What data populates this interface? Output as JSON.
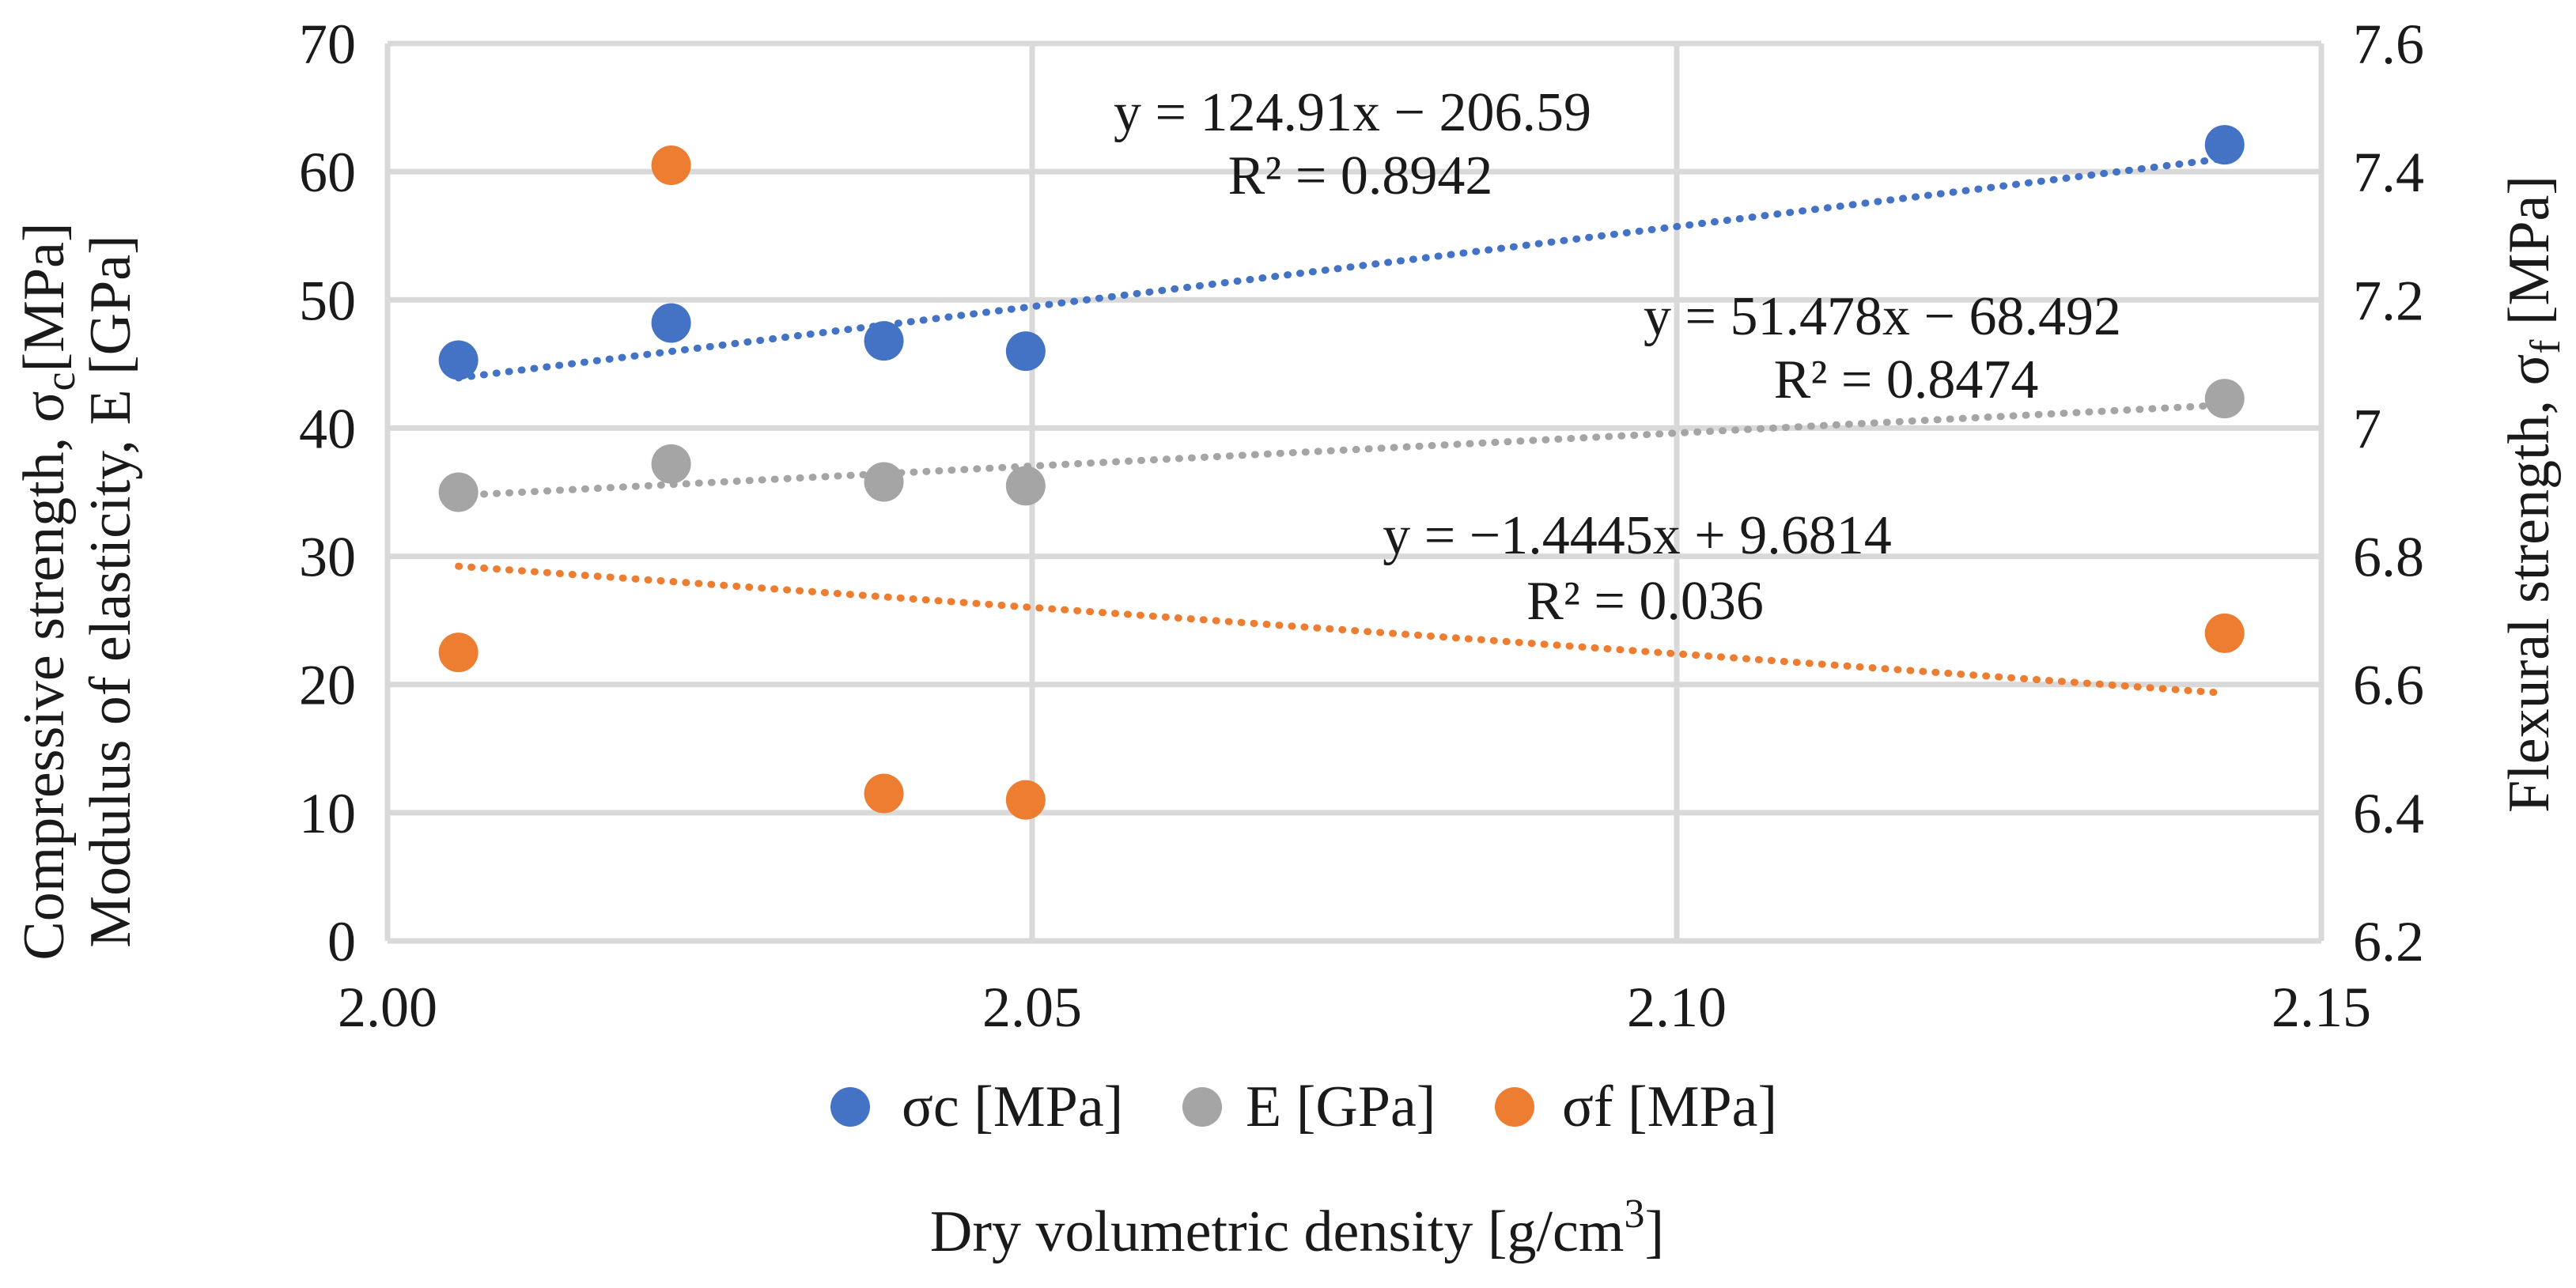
{
  "chart_data": {
    "type": "scatter",
    "title": "",
    "xlabel": "Dry volumetric density [g/cm",
    "xlabel_sup": "3",
    "xlabel_tail": "]",
    "ylabel_left_line1": "Compressive strength, σ",
    "ylabel_left_line1_sub": "c",
    "ylabel_left_line1_tail": "[MPa]",
    "ylabel_left_line2": "Modulus of elasticity, E [GPa]",
    "ylabel_right": "Flexural strength, σ",
    "ylabel_right_sub": "f",
    "ylabel_right_tail": " [MPa]",
    "xlim": [
      2.0,
      2.15
    ],
    "ylim_left": [
      0,
      70
    ],
    "ylim_right": [
      6.2,
      7.6
    ],
    "x_ticks": [
      2.0,
      2.05,
      2.1,
      2.15
    ],
    "x_tick_labels": [
      "2.00",
      "2.05",
      "2.10",
      "2.15"
    ],
    "y_left_ticks": [
      0,
      10,
      20,
      30,
      40,
      50,
      60,
      70
    ],
    "y_left_tick_labels": [
      "0",
      "10",
      "20",
      "30",
      "40",
      "50",
      "60",
      "70"
    ],
    "y_right_ticks": [
      6.2,
      6.4,
      6.6,
      6.8,
      7.0,
      7.2,
      7.4,
      7.6
    ],
    "y_right_tick_labels": [
      "6.2",
      "6.4",
      "6.6",
      "6.8",
      "7",
      "7.2",
      "7.4",
      "7.6"
    ],
    "grid": true,
    "legend_position": "bottom",
    "series": [
      {
        "name": "σc [MPa]",
        "axis": "left",
        "color": "#4472c4",
        "x": [
          2.0055,
          2.022,
          2.0385,
          2.0495,
          2.1425
        ],
        "y": [
          45.3,
          48.2,
          46.8,
          46.0,
          62.1
        ],
        "trendline": {
          "slope": 124.91,
          "intercept": -206.59,
          "x_range": [
            2.0055,
            2.1425
          ]
        },
        "equation": "y = 124.91x − 206.59",
        "r2": "R² = 0.8942"
      },
      {
        "name": "E [GPa]",
        "axis": "left",
        "color": "#a5a5a5",
        "x": [
          2.0055,
          2.022,
          2.0385,
          2.0495,
          2.1425
        ],
        "y": [
          35.0,
          37.2,
          35.8,
          35.5,
          42.3
        ],
        "trendline": {
          "slope": 51.478,
          "intercept": -68.492,
          "x_range": [
            2.0055,
            2.1425
          ]
        },
        "equation": "y = 51.478x − 68.492",
        "r2": "R² = 0.8474"
      },
      {
        "name": "σf [MPa]",
        "axis": "right",
        "color": "#ed7d31",
        "x": [
          2.0055,
          2.022,
          2.0385,
          2.0495,
          2.1425
        ],
        "y": [
          6.65,
          7.41,
          6.43,
          6.42,
          6.68
        ],
        "trendline": {
          "slope": -1.4445,
          "intercept": 9.6814,
          "x_range": [
            2.0055,
            2.1425
          ]
        },
        "equation": "y = −1.4445x + 9.6814",
        "r2": "R² = 0.036"
      }
    ]
  }
}
